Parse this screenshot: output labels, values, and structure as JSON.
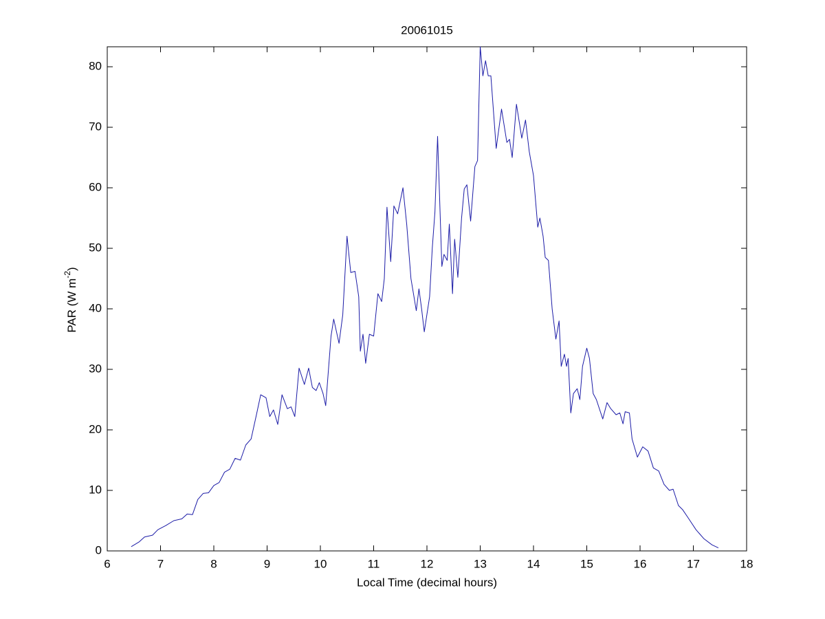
{
  "chart_data": {
    "type": "line",
    "title": "20061015",
    "x_label": "Local Time (decimal hours)",
    "y_label": {
      "text": "PAR (W m",
      "superscript": "-2",
      "suffix": ")"
    },
    "xlim": [
      6,
      18
    ],
    "xticks": [
      6,
      7,
      8,
      9,
      10,
      11,
      12,
      13,
      14,
      15,
      16,
      17,
      18
    ],
    "ylim": [
      0,
      83.3
    ],
    "yticks": [
      0,
      10,
      20,
      30,
      40,
      50,
      60,
      70,
      80
    ],
    "x": [
      6.45,
      6.6,
      6.7,
      6.85,
      6.95,
      7.1,
      7.25,
      7.4,
      7.5,
      7.6,
      7.7,
      7.8,
      7.9,
      8.0,
      8.1,
      8.2,
      8.3,
      8.4,
      8.5,
      8.6,
      8.7,
      8.8,
      8.88,
      8.98,
      9.05,
      9.12,
      9.2,
      9.28,
      9.38,
      9.45,
      9.52,
      9.6,
      9.7,
      9.78,
      9.85,
      9.92,
      9.98,
      10.05,
      10.1,
      10.2,
      10.25,
      10.35,
      10.42,
      10.5,
      10.57,
      10.65,
      10.72,
      10.75,
      10.8,
      10.85,
      10.92,
      11.0,
      11.08,
      11.15,
      11.2,
      11.25,
      11.32,
      11.38,
      11.45,
      11.55,
      11.62,
      11.7,
      11.8,
      11.85,
      11.9,
      11.95,
      12.05,
      12.1,
      12.15,
      12.2,
      12.28,
      12.32,
      12.38,
      12.42,
      12.48,
      12.52,
      12.58,
      12.65,
      12.7,
      12.75,
      12.82,
      12.9,
      12.95,
      13.0,
      13.05,
      13.1,
      13.15,
      13.2,
      13.3,
      13.4,
      13.5,
      13.55,
      13.6,
      13.68,
      13.78,
      13.85,
      13.92,
      14.0,
      14.08,
      14.12,
      14.18,
      14.22,
      14.28,
      14.35,
      14.42,
      14.48,
      14.52,
      14.58,
      14.62,
      14.65,
      14.7,
      14.75,
      14.82,
      14.87,
      14.92,
      15.0,
      15.05,
      15.12,
      15.18,
      15.3,
      15.38,
      15.45,
      15.55,
      15.62,
      15.68,
      15.72,
      15.8,
      15.85,
      15.95,
      16.05,
      16.15,
      16.25,
      16.35,
      16.45,
      16.55,
      16.62,
      16.72,
      16.8,
      16.9,
      17.05,
      17.2,
      17.35,
      17.47
    ],
    "series": [
      {
        "color": "#1a1aa6",
        "values": [
          0.7,
          1.5,
          2.3,
          2.6,
          3.5,
          4.2,
          5.0,
          5.3,
          6.1,
          6.0,
          8.5,
          9.5,
          9.6,
          10.8,
          11.3,
          13.0,
          13.5,
          15.3,
          15.0,
          17.5,
          18.5,
          22.5,
          25.8,
          25.3,
          22.2,
          23.3,
          20.9,
          25.8,
          23.5,
          23.8,
          22.2,
          30.2,
          27.5,
          30.2,
          27.0,
          26.5,
          27.8,
          26.0,
          24.0,
          35.5,
          38.3,
          34.3,
          39.0,
          52.0,
          46.0,
          46.2,
          42.0,
          33.0,
          35.8,
          31.0,
          35.8,
          35.5,
          42.5,
          41.2,
          45.0,
          56.8,
          47.8,
          57.0,
          55.7,
          60.0,
          54.0,
          45.0,
          39.7,
          43.3,
          40.0,
          36.2,
          42.0,
          50.0,
          56.0,
          68.5,
          47.0,
          49.0,
          48.0,
          54.0,
          42.5,
          51.5,
          45.2,
          55.0,
          59.8,
          60.5,
          54.5,
          63.5,
          64.5,
          83.3,
          78.5,
          81.0,
          78.5,
          78.5,
          66.5,
          73.0,
          67.5,
          68.0,
          65.0,
          73.8,
          68.2,
          71.2,
          66.0,
          62.0,
          53.5,
          55.0,
          52.0,
          48.5,
          48.0,
          40.0,
          35.0,
          38.0,
          30.5,
          32.5,
          30.5,
          31.8,
          22.8,
          26.0,
          26.8,
          25.0,
          30.5,
          33.5,
          31.8,
          26.0,
          25.0,
          21.8,
          24.5,
          23.5,
          22.5,
          22.8,
          21.0,
          23.0,
          22.8,
          18.5,
          15.5,
          17.2,
          16.5,
          13.7,
          13.2,
          11.0,
          10.0,
          10.2,
          7.5,
          6.8,
          5.5,
          3.5,
          2.0,
          1.0,
          0.5
        ]
      }
    ]
  }
}
